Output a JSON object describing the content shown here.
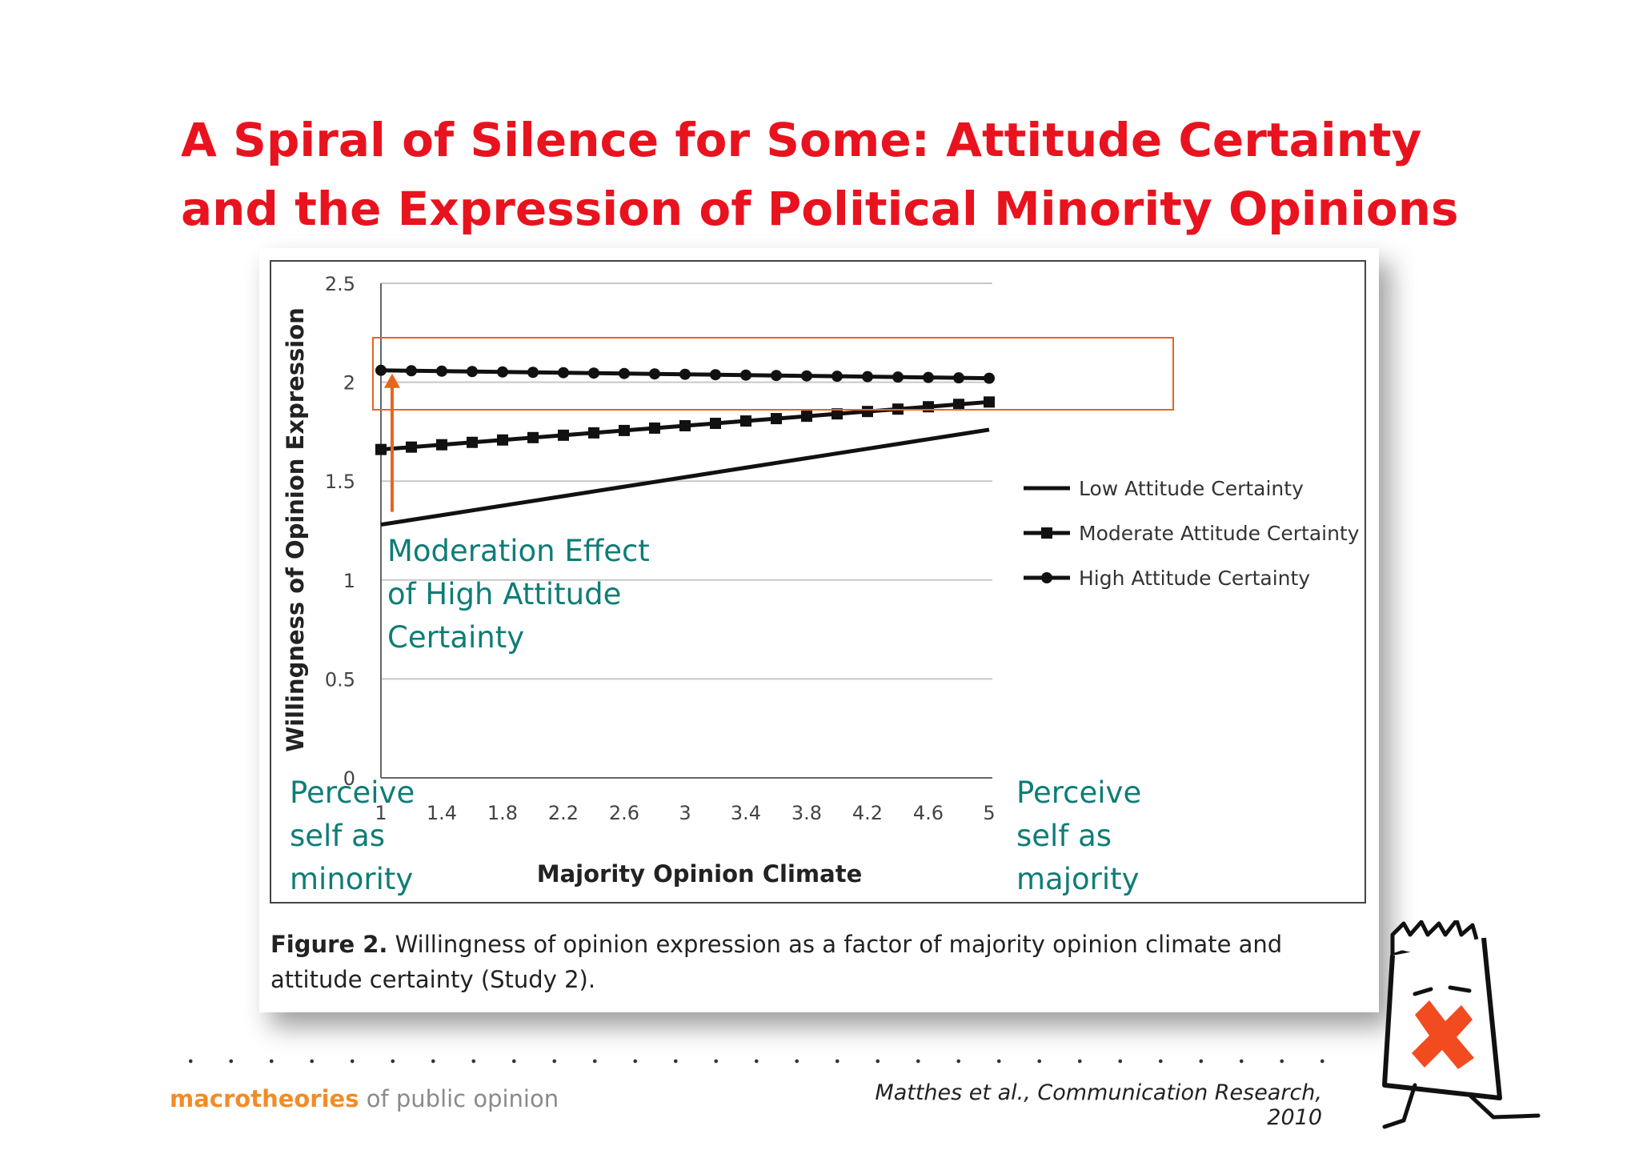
{
  "slide_title": {
    "line1": "A Spiral of Silence for Some: Attitude Certainty",
    "line2": "and the Expression of Political Minority Opinions"
  },
  "chart_data": {
    "type": "line",
    "xlabel": "Majority Opinion Climate",
    "ylabel": "Willingness of Opinion Expression",
    "x_ticks": [
      "1",
      "1.4",
      "1.8",
      "2.2",
      "2.6",
      "3",
      "3.4",
      "3.8",
      "4.2",
      "4.6",
      "5"
    ],
    "y_ticks": [
      "0",
      "0.5",
      "1",
      "1.5",
      "2",
      "2.5"
    ],
    "xlim": [
      1,
      5
    ],
    "ylim": [
      0,
      2.5
    ],
    "grid": "horizontal",
    "legend_position": "right",
    "x": [
      1,
      1.2,
      1.4,
      1.6,
      1.8,
      2,
      2.2,
      2.4,
      2.6,
      2.8,
      3,
      3.2,
      3.4,
      3.6,
      3.8,
      4,
      4.2,
      4.4,
      4.6,
      4.8,
      5
    ],
    "series": [
      {
        "name": "Low Attitude Certainty",
        "marker": "none",
        "values": [
          1.28,
          1.304,
          1.328,
          1.352,
          1.376,
          1.4,
          1.424,
          1.448,
          1.472,
          1.496,
          1.52,
          1.544,
          1.568,
          1.592,
          1.616,
          1.64,
          1.664,
          1.688,
          1.712,
          1.736,
          1.76
        ]
      },
      {
        "name": "Moderate Attitude Certainty",
        "marker": "square",
        "values": [
          1.66,
          1.672,
          1.684,
          1.696,
          1.708,
          1.72,
          1.732,
          1.744,
          1.756,
          1.768,
          1.78,
          1.792,
          1.804,
          1.816,
          1.828,
          1.84,
          1.852,
          1.864,
          1.876,
          1.888,
          1.9
        ]
      },
      {
        "name": "High Attitude Certainty",
        "marker": "circle",
        "values": [
          2.06,
          2.058,
          2.056,
          2.054,
          2.052,
          2.05,
          2.048,
          2.046,
          2.044,
          2.042,
          2.04,
          2.038,
          2.036,
          2.034,
          2.032,
          2.03,
          2.028,
          2.026,
          2.024,
          2.022,
          2.02
        ]
      }
    ]
  },
  "annotations": {
    "moderation": [
      "Moderation Effect",
      "of High Attitude",
      "Certainty"
    ],
    "minority": [
      "Perceive",
      "self as",
      "minority"
    ],
    "majority": [
      "Perceive",
      "self as",
      "majority"
    ]
  },
  "caption": {
    "label": "Figure 2.",
    "text": "Willingness of opinion expression as a factor of majority opinion climate and attitude certainty (Study 2)."
  },
  "footer": {
    "brand": "macrotheories",
    "rest": " of public opinion"
  },
  "citation": "Matthes et al., Communication Research, 2010",
  "colors": {
    "title": "#e8131e",
    "annotation": "#0e7d76",
    "highlight_box": "#e8651e",
    "brand": "#f28c28"
  }
}
